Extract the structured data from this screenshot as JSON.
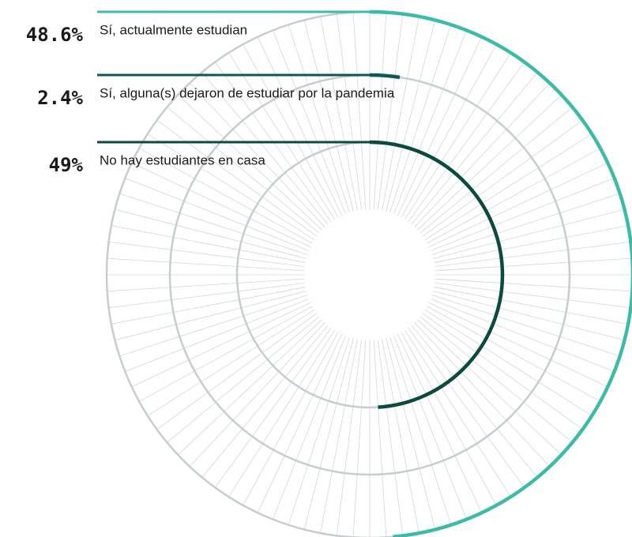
{
  "chart_data": {
    "type": "radialBar",
    "categories": [
      "Sí, actualmente estudian",
      "Sí, alguna(s) dejaron de estudiar por la pandemia",
      "No hay estudiantes en casa"
    ],
    "values": [
      48.6,
      2.4,
      49
    ],
    "value_labels": [
      "48.6%",
      "2.4%",
      "49%"
    ],
    "colors": [
      "#3dbaa8",
      "#0f5a4e",
      "#0b4a3d"
    ],
    "ylim": [
      0,
      100
    ]
  }
}
